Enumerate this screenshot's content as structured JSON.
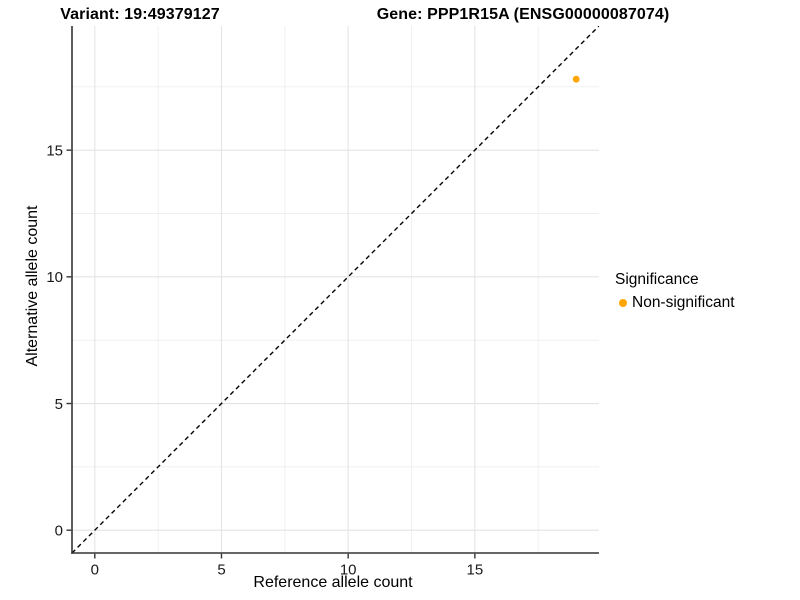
{
  "chart_data": {
    "type": "scatter",
    "title_left": "Variant: 19:49379127",
    "title_right": "Gene: PPP1R15A (ENSG00000087074)",
    "xlabel": "Reference allele count",
    "ylabel": "Alternative allele count",
    "xlim": [
      -0.9,
      19.9
    ],
    "ylim": [
      -0.9,
      19.9
    ],
    "x_ticks": [
      0,
      5,
      10,
      15
    ],
    "y_ticks": [
      0,
      5,
      10,
      15
    ],
    "x_minor_ticks": [
      2.5,
      7.5,
      12.5,
      17.5
    ],
    "y_minor_ticks": [
      2.5,
      7.5,
      12.5,
      17.5
    ],
    "grid": "major and minor gridlines on white background",
    "series": [
      {
        "name": "Non-significant",
        "color": "#FFA500",
        "points": [
          {
            "x": 19,
            "y": 17.8
          }
        ]
      }
    ],
    "reference_line": {
      "type": "identity",
      "slope": 1,
      "intercept": 0,
      "style": "dashed",
      "color": "#000000"
    },
    "legend": {
      "title": "Significance",
      "position": "right",
      "entries": [
        {
          "label": "Non-significant",
          "color": "#FFA500"
        }
      ]
    }
  },
  "style": {
    "background": "#FFFFFF",
    "axis_line_color": "#333333",
    "tick_color": "#333333",
    "tick_label_color": "#1a1a1a",
    "grid_major_color": "#E4E4E4",
    "grid_minor_color": "#EFEFEF",
    "point_color": "#FFA500",
    "text_color": "#000000"
  }
}
